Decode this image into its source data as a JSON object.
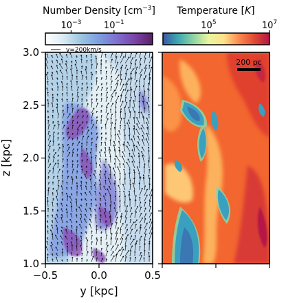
{
  "chart_data": [
    {
      "type": "heatmap",
      "panel": "left",
      "colorbar": {
        "label": "Number Density [cm",
        "label_exp": "−3",
        "label_end": "]",
        "ticks": [
          {
            "base": "10",
            "exp": "−3",
            "log_value": -3
          },
          {
            "base": "10",
            "exp": "−1",
            "log_value": -1
          }
        ],
        "log_range": [
          -4.2,
          0.8
        ],
        "colormap": [
          "#ffffff",
          "#dcebf3",
          "#9bc6e2",
          "#7c9ee0",
          "#7f6fd0",
          "#7a44a8",
          "#5a1f63"
        ]
      },
      "xlabel": "y [kpc]",
      "ylabel": "z [kpc]",
      "xlim": [
        -0.5,
        0.5
      ],
      "ylim": [
        1.0,
        3.0
      ],
      "xticks": [
        "−0.5",
        "0.0",
        "0.5"
      ],
      "xtick_values": [
        -0.5,
        0.0,
        0.5
      ],
      "yticks": [
        "1.0",
        "1.5",
        "2.0",
        "2.5",
        "3.0"
      ],
      "ytick_values": [
        1.0,
        1.5,
        2.0,
        2.5,
        3.0
      ],
      "quiver_key": "v=200km/s"
    },
    {
      "type": "heatmap",
      "panel": "right",
      "colorbar": {
        "label": "Temperature [",
        "label_italic": "K",
        "label_end": "]",
        "ticks": [
          {
            "base": "10",
            "exp": "5",
            "log_value": 5
          },
          {
            "base": "10",
            "exp": "7",
            "log_value": 7
          }
        ],
        "log_range": [
          3.5,
          7.0
        ],
        "colormap": [
          "#3d56a6",
          "#3da8b2",
          "#8fd3a4",
          "#e9f5a0",
          "#fee18a",
          "#fb8a50",
          "#e04a33",
          "#b41645"
        ]
      },
      "scale_bar": "200 pc",
      "xlim": [
        -0.5,
        0.5
      ],
      "ylim": [
        1.0,
        3.0
      ],
      "xtick_values": [
        -0.5,
        0.0,
        0.5
      ],
      "ytick_values": [
        1.0,
        1.5,
        2.0,
        2.5,
        3.0
      ]
    }
  ],
  "colors": {
    "hot_background": "#f3662f",
    "warm_filament": "#fcb25b",
    "cold_gas": "#3aa0c0",
    "hottest": "#c8283f"
  }
}
